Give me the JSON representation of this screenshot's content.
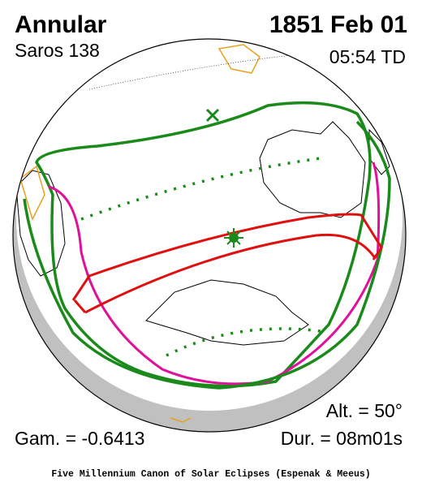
{
  "header": {
    "title": "Annular",
    "saros": "Saros 138",
    "date": "1851 Feb 01",
    "time": "05:54 TD"
  },
  "footer": {
    "altitude": "Alt. = 50°",
    "gamma": "Gam. = -0.6413",
    "duration": "Dur. = 08m01s",
    "credit": "Five Millennium Canon of Solar Eclipses (Espenak & Meeus)"
  }
}
